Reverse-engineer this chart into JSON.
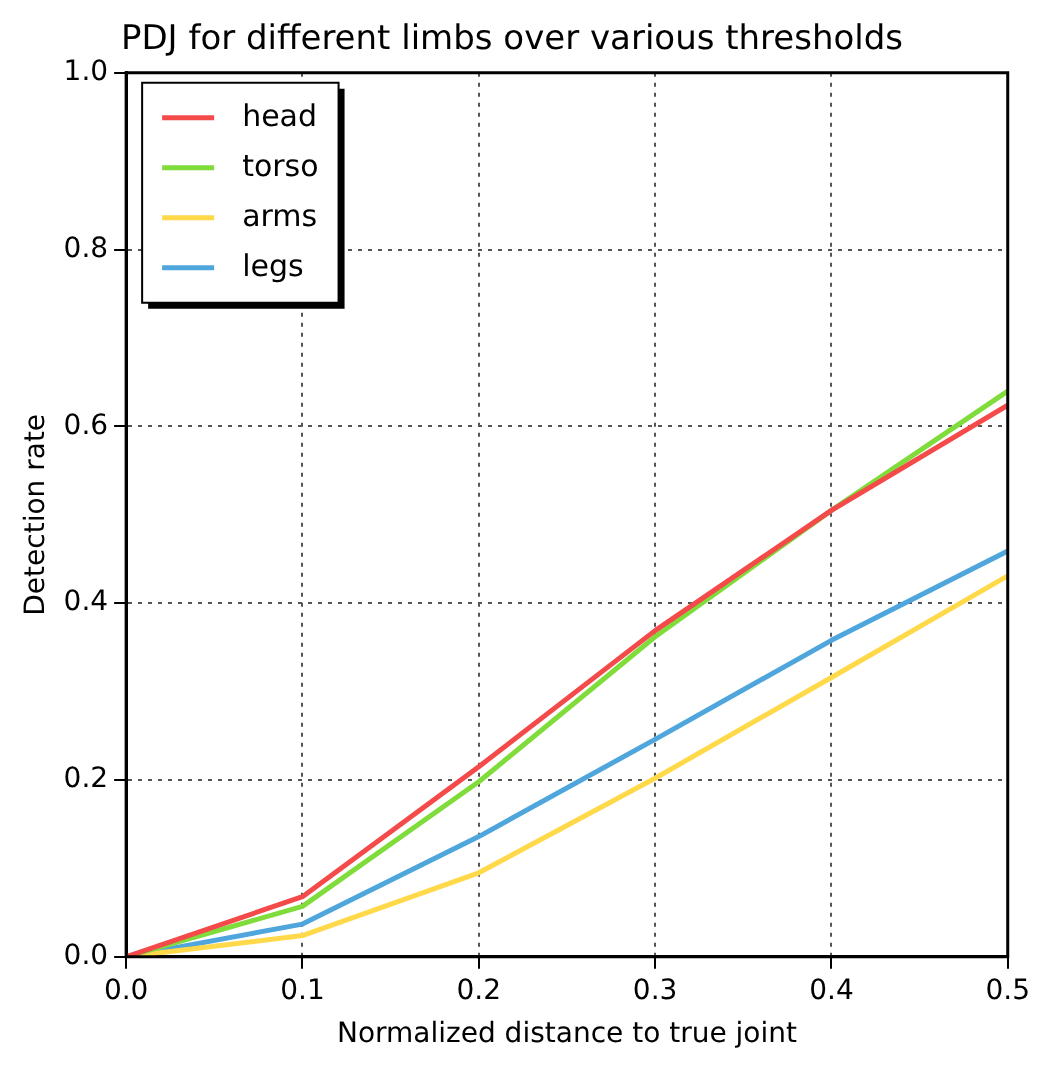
{
  "chart_data": {
    "type": "line",
    "title": "PDJ for different limbs over various thresholds",
    "xlabel": "Normalized distance to true joint",
    "ylabel": "Detection rate",
    "x": [
      0,
      0.1,
      0.2,
      0.3,
      0.4,
      0.5
    ],
    "series": [
      {
        "name": "head",
        "color": "#f44a4a",
        "values": [
          0,
          0.068,
          0.215,
          0.369,
          0.505,
          0.624
        ]
      },
      {
        "name": "torso",
        "color": "#7fdc3b",
        "values": [
          0,
          0.057,
          0.198,
          0.362,
          0.505,
          0.64
        ]
      },
      {
        "name": "arms",
        "color": "#ffd94a",
        "values": [
          0,
          0.024,
          0.095,
          0.202,
          0.316,
          0.431
        ]
      },
      {
        "name": "legs",
        "color": "#4ea6dc",
        "values": [
          0,
          0.037,
          0.136,
          0.246,
          0.358,
          0.459
        ]
      }
    ],
    "xlim": [
      0,
      0.5
    ],
    "xticks": [
      {
        "value": 0,
        "label": "0.0"
      },
      0.1,
      0.2,
      0.3,
      0.4,
      0.5
    ],
    "ylim": [
      0,
      1
    ],
    "yticks": [
      {
        "value": 0,
        "label": "0.0"
      },
      0.2,
      0.4,
      0.6,
      0.8,
      {
        "value": 1,
        "label": "1.0"
      }
    ],
    "grid": true,
    "legend": "top left",
    "marker": "none",
    "line_style": "solid"
  }
}
